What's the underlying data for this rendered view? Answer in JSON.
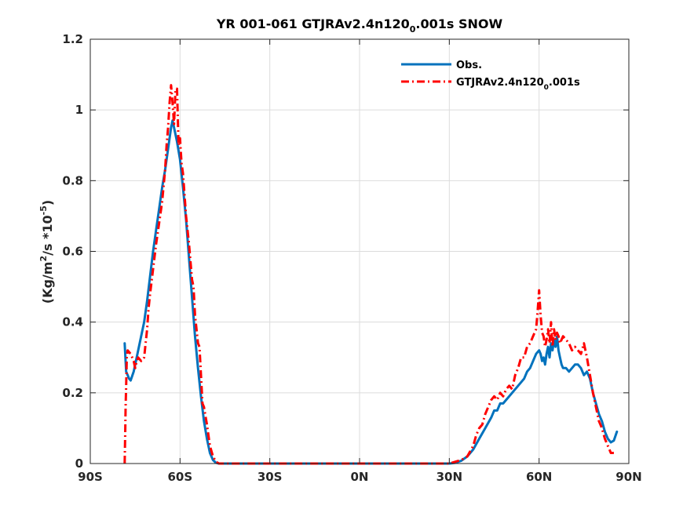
{
  "chart_data": {
    "type": "line",
    "title": "YR 001-061 GTJRAv2.4n120",
    "title_sub": "0",
    "title_suffix": ".001s SNOW",
    "ylabel": "(Kg/m",
    "ylabel_sup1": "2",
    "ylabel_mid": "/s *10",
    "ylabel_sup2": "-5",
    "ylabel_end": ")",
    "xlabel": "",
    "xlim": [
      -90,
      90
    ],
    "ylim": [
      0,
      1.2
    ],
    "xticks": [
      -90,
      -60,
      -30,
      0,
      30,
      60,
      90
    ],
    "xtick_labels": [
      "90S",
      "60S",
      "30S",
      "0N",
      "30N",
      "60N",
      "90N"
    ],
    "yticks": [
      0,
      0.2,
      0.4,
      0.6,
      0.8,
      1.0,
      1.2
    ],
    "ytick_labels": [
      "0",
      "0.2",
      "0.4",
      "0.6",
      "0.8",
      "1",
      "1.2"
    ],
    "grid": true,
    "legend_position": "top-right",
    "series": [
      {
        "name": "Obs.",
        "color": "#0072BD",
        "style": "solid",
        "points": [
          [
            -78.5,
            0.34
          ],
          [
            -78,
            0.26
          ],
          [
            -77,
            0.24
          ],
          [
            -76.5,
            0.235
          ],
          [
            -75.5,
            0.26
          ],
          [
            -74.5,
            0.3
          ],
          [
            -73,
            0.36
          ],
          [
            -72,
            0.4
          ],
          [
            -71,
            0.46
          ],
          [
            -70,
            0.53
          ],
          [
            -69,
            0.6
          ],
          [
            -68,
            0.66
          ],
          [
            -67,
            0.72
          ],
          [
            -66,
            0.78
          ],
          [
            -65,
            0.83
          ],
          [
            -64,
            0.89
          ],
          [
            -63,
            0.95
          ],
          [
            -62.5,
            0.97
          ],
          [
            -62,
            0.95
          ],
          [
            -61,
            0.91
          ],
          [
            -60,
            0.86
          ],
          [
            -59,
            0.78
          ],
          [
            -58,
            0.69
          ],
          [
            -57,
            0.58
          ],
          [
            -56,
            0.47
          ],
          [
            -55,
            0.36
          ],
          [
            -54,
            0.27
          ],
          [
            -53,
            0.19
          ],
          [
            -52,
            0.12
          ],
          [
            -51,
            0.07
          ],
          [
            -50,
            0.03
          ],
          [
            -49,
            0.01
          ],
          [
            -48,
            0.002
          ],
          [
            -47,
            0.0
          ],
          [
            -20,
            0.0
          ],
          [
            0,
            0.0
          ],
          [
            20,
            0.0
          ],
          [
            30,
            0.0
          ],
          [
            32,
            0.002
          ],
          [
            34,
            0.008
          ],
          [
            36,
            0.02
          ],
          [
            38,
            0.04
          ],
          [
            40,
            0.07
          ],
          [
            42,
            0.1
          ],
          [
            44,
            0.13
          ],
          [
            45,
            0.15
          ],
          [
            46,
            0.15
          ],
          [
            47,
            0.17
          ],
          [
            48,
            0.17
          ],
          [
            49,
            0.18
          ],
          [
            50,
            0.19
          ],
          [
            51,
            0.2
          ],
          [
            52,
            0.21
          ],
          [
            53,
            0.22
          ],
          [
            54,
            0.23
          ],
          [
            55,
            0.24
          ],
          [
            56,
            0.26
          ],
          [
            57,
            0.27
          ],
          [
            58,
            0.29
          ],
          [
            59,
            0.31
          ],
          [
            60,
            0.32
          ],
          [
            60.5,
            0.31
          ],
          [
            61,
            0.29
          ],
          [
            61.5,
            0.3
          ],
          [
            62,
            0.28
          ],
          [
            62.5,
            0.31
          ],
          [
            63,
            0.33
          ],
          [
            63.5,
            0.3
          ],
          [
            64,
            0.34
          ],
          [
            64.5,
            0.32
          ],
          [
            65,
            0.35
          ],
          [
            65.5,
            0.33
          ],
          [
            66,
            0.36
          ],
          [
            66.5,
            0.32
          ],
          [
            67,
            0.3
          ],
          [
            67.5,
            0.28
          ],
          [
            68,
            0.27
          ],
          [
            69,
            0.27
          ],
          [
            70,
            0.26
          ],
          [
            71,
            0.27
          ],
          [
            72,
            0.28
          ],
          [
            73,
            0.28
          ],
          [
            74,
            0.27
          ],
          [
            75,
            0.25
          ],
          [
            76,
            0.26
          ],
          [
            77,
            0.24
          ],
          [
            78,
            0.2
          ],
          [
            79,
            0.17
          ],
          [
            80,
            0.14
          ],
          [
            81,
            0.12
          ],
          [
            82,
            0.09
          ],
          [
            83,
            0.07
          ],
          [
            84,
            0.06
          ],
          [
            85,
            0.065
          ],
          [
            86,
            0.09
          ]
        ]
      },
      {
        "name": "GTJRAv2.4n120",
        "name_sub": "0",
        "name_suffix": ".001s",
        "color": "#FF0000",
        "style": "dashdot",
        "points": [
          [
            -78.5,
            0.0
          ],
          [
            -78.4,
            0.05
          ],
          [
            -78.3,
            0.1
          ],
          [
            -78.2,
            0.16
          ],
          [
            -78,
            0.22
          ],
          [
            -77.8,
            0.3
          ],
          [
            -77.5,
            0.32
          ],
          [
            -77,
            0.315
          ],
          [
            -76.5,
            0.31
          ],
          [
            -76,
            0.3
          ],
          [
            -75.5,
            0.29
          ],
          [
            -75,
            0.27
          ],
          [
            -74.5,
            0.29
          ],
          [
            -74,
            0.3
          ],
          [
            -73,
            0.29
          ],
          [
            -72,
            0.3
          ],
          [
            -71,
            0.38
          ],
          [
            -70.5,
            0.44
          ],
          [
            -70,
            0.48
          ],
          [
            -69,
            0.55
          ],
          [
            -68,
            0.62
          ],
          [
            -67,
            0.68
          ],
          [
            -66,
            0.74
          ],
          [
            -65,
            0.83
          ],
          [
            -64.5,
            0.9
          ],
          [
            -64,
            0.95
          ],
          [
            -63.5,
            1.02
          ],
          [
            -63,
            1.07
          ],
          [
            -62.5,
            1.02
          ],
          [
            -62,
            0.96
          ],
          [
            -61.5,
            1.06
          ],
          [
            -61,
            1.06
          ],
          [
            -60.5,
            0.9
          ],
          [
            -60,
            0.92
          ],
          [
            -59.5,
            0.85
          ],
          [
            -59,
            0.82
          ],
          [
            -58,
            0.7
          ],
          [
            -57,
            0.62
          ],
          [
            -56,
            0.52
          ],
          [
            -55.5,
            0.5
          ],
          [
            -55,
            0.42
          ],
          [
            -54,
            0.34
          ],
          [
            -53.5,
            0.33
          ],
          [
            -53,
            0.25
          ],
          [
            -52.5,
            0.17
          ],
          [
            -52,
            0.16
          ],
          [
            -51,
            0.11
          ],
          [
            -50,
            0.05
          ],
          [
            -49,
            0.02
          ],
          [
            -48,
            0.005
          ],
          [
            -47,
            0.0
          ],
          [
            -20,
            0.0
          ],
          [
            0,
            0.0
          ],
          [
            20,
            0.0
          ],
          [
            30,
            0.0
          ],
          [
            32,
            0.005
          ],
          [
            34,
            0.01
          ],
          [
            36,
            0.02
          ],
          [
            38,
            0.05
          ],
          [
            39,
            0.08
          ],
          [
            40,
            0.1
          ],
          [
            41,
            0.11
          ],
          [
            42,
            0.14
          ],
          [
            43,
            0.16
          ],
          [
            44,
            0.18
          ],
          [
            45,
            0.19
          ],
          [
            46,
            0.18
          ],
          [
            47,
            0.2
          ],
          [
            48,
            0.19
          ],
          [
            49,
            0.21
          ],
          [
            50,
            0.22
          ],
          [
            51,
            0.21
          ],
          [
            52,
            0.25
          ],
          [
            53,
            0.27
          ],
          [
            54,
            0.3
          ],
          [
            55,
            0.3
          ],
          [
            56,
            0.33
          ],
          [
            57,
            0.34
          ],
          [
            58,
            0.36
          ],
          [
            59,
            0.38
          ],
          [
            59.5,
            0.43
          ],
          [
            60,
            0.49
          ],
          [
            60.5,
            0.42
          ],
          [
            61,
            0.37
          ],
          [
            61.5,
            0.36
          ],
          [
            62,
            0.33
          ],
          [
            62.5,
            0.35
          ],
          [
            63,
            0.38
          ],
          [
            63.5,
            0.34
          ],
          [
            64,
            0.4
          ],
          [
            64.5,
            0.33
          ],
          [
            65,
            0.38
          ],
          [
            65.5,
            0.35
          ],
          [
            66,
            0.37
          ],
          [
            66.5,
            0.36
          ],
          [
            67,
            0.34
          ],
          [
            68,
            0.36
          ],
          [
            69,
            0.35
          ],
          [
            70,
            0.34
          ],
          [
            71,
            0.32
          ],
          [
            72,
            0.33
          ],
          [
            73,
            0.32
          ],
          [
            74,
            0.31
          ],
          [
            75,
            0.34
          ],
          [
            76,
            0.3
          ],
          [
            77,
            0.25
          ],
          [
            78,
            0.2
          ],
          [
            79,
            0.16
          ],
          [
            80,
            0.12
          ],
          [
            81,
            0.1
          ],
          [
            82,
            0.07
          ],
          [
            83,
            0.05
          ],
          [
            84,
            0.03
          ],
          [
            85,
            0.03
          ]
        ]
      }
    ]
  }
}
